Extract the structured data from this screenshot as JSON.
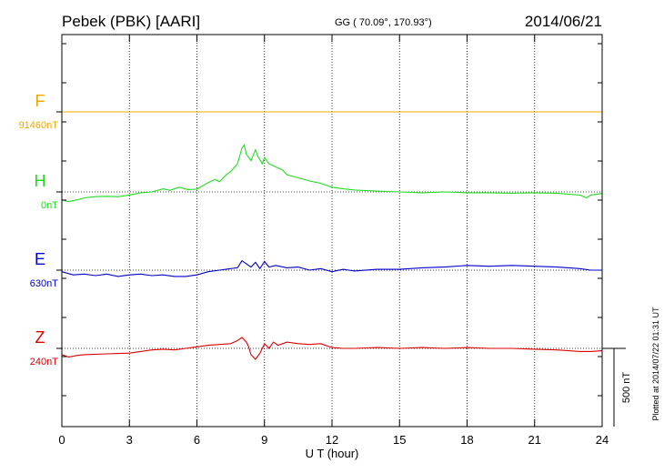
{
  "header": {
    "station": "Pebek (PBK)  [AARI]",
    "coords": "GG ( 70.09°, 170.93°)",
    "date": "2014/06/21"
  },
  "footer": {
    "plotted": "Plotted at 2014/07/22 01:31  UT",
    "scale_bar_label": "500 nT"
  },
  "chart_data": {
    "type": "line",
    "xlabel": "U T (hour)",
    "xlim": [
      0,
      24
    ],
    "xticks": [
      0,
      3,
      6,
      9,
      12,
      15,
      18,
      21,
      24
    ],
    "scale_bar_nT": 500,
    "series": [
      {
        "name": "F",
        "baseline_label": "91460nT",
        "color": "#f0a800",
        "points": [
          [
            0,
            0
          ],
          [
            24,
            0
          ]
        ]
      },
      {
        "name": "H",
        "baseline_label": "0nT",
        "color": "#22dd22",
        "points": [
          [
            0,
            -50
          ],
          [
            0.3,
            -62
          ],
          [
            0.7,
            -50
          ],
          [
            1,
            -38
          ],
          [
            1.5,
            -30
          ],
          [
            2,
            -28
          ],
          [
            2.5,
            -30
          ],
          [
            3,
            -20
          ],
          [
            3.5,
            -5
          ],
          [
            4,
            0
          ],
          [
            4.5,
            20
          ],
          [
            4.8,
            10
          ],
          [
            5.2,
            30
          ],
          [
            5.6,
            15
          ],
          [
            6,
            18
          ],
          [
            6.5,
            60
          ],
          [
            6.8,
            80
          ],
          [
            7,
            65
          ],
          [
            7.3,
            110
          ],
          [
            7.5,
            130
          ],
          [
            7.8,
            180
          ],
          [
            8,
            280
          ],
          [
            8.1,
            300
          ],
          [
            8.2,
            240
          ],
          [
            8.4,
            200
          ],
          [
            8.6,
            270
          ],
          [
            8.7,
            230
          ],
          [
            8.9,
            180
          ],
          [
            9,
            220
          ],
          [
            9.2,
            180
          ],
          [
            9.5,
            160
          ],
          [
            9.8,
            140
          ],
          [
            10,
            110
          ],
          [
            10.5,
            90
          ],
          [
            11,
            70
          ],
          [
            11.5,
            55
          ],
          [
            12,
            30
          ],
          [
            12.5,
            20
          ],
          [
            13,
            12
          ],
          [
            14,
            5
          ],
          [
            15,
            0
          ],
          [
            16,
            -5
          ],
          [
            17,
            0
          ],
          [
            18,
            -5
          ],
          [
            19,
            -5
          ],
          [
            20,
            -8
          ],
          [
            21,
            -5
          ],
          [
            22,
            -8
          ],
          [
            23,
            -20
          ],
          [
            23.3,
            -38
          ],
          [
            23.5,
            -20
          ],
          [
            24,
            -10
          ]
        ]
      },
      {
        "name": "E",
        "baseline_label": "630nT",
        "color": "#0000cc",
        "points": [
          [
            0,
            -10
          ],
          [
            0.5,
            -30
          ],
          [
            1,
            -25
          ],
          [
            1.5,
            -35
          ],
          [
            2,
            -25
          ],
          [
            2.5,
            -40
          ],
          [
            3,
            -30
          ],
          [
            3.5,
            -25
          ],
          [
            4,
            -35
          ],
          [
            4.5,
            -30
          ],
          [
            5,
            -40
          ],
          [
            5.5,
            -40
          ],
          [
            6,
            -30
          ],
          [
            6.5,
            -10
          ],
          [
            7,
            0
          ],
          [
            7.5,
            10
          ],
          [
            7.8,
            15
          ],
          [
            8,
            60
          ],
          [
            8.2,
            40
          ],
          [
            8.4,
            20
          ],
          [
            8.6,
            50
          ],
          [
            8.8,
            10
          ],
          [
            9,
            55
          ],
          [
            9.2,
            20
          ],
          [
            9.5,
            30
          ],
          [
            10,
            15
          ],
          [
            10.5,
            20
          ],
          [
            11,
            0
          ],
          [
            11.5,
            10
          ],
          [
            12,
            -10
          ],
          [
            12.5,
            5
          ],
          [
            13,
            -5
          ],
          [
            14,
            5
          ],
          [
            15,
            5
          ],
          [
            16,
            15
          ],
          [
            17,
            20
          ],
          [
            18,
            30
          ],
          [
            19,
            25
          ],
          [
            20,
            30
          ],
          [
            21,
            25
          ],
          [
            22,
            20
          ],
          [
            23,
            10
          ],
          [
            23.5,
            0
          ],
          [
            24,
            0
          ]
        ]
      },
      {
        "name": "Z",
        "baseline_label": "240nT",
        "color": "#dd0000",
        "points": [
          [
            0,
            -40
          ],
          [
            0.3,
            -55
          ],
          [
            0.7,
            -45
          ],
          [
            1,
            -40
          ],
          [
            2,
            -35
          ],
          [
            3,
            -30
          ],
          [
            3.5,
            -20
          ],
          [
            4,
            -10
          ],
          [
            4.5,
            -5
          ],
          [
            5,
            -10
          ],
          [
            5.5,
            0
          ],
          [
            6,
            10
          ],
          [
            6.5,
            20
          ],
          [
            7,
            25
          ],
          [
            7.5,
            30
          ],
          [
            7.8,
            50
          ],
          [
            8,
            70
          ],
          [
            8.2,
            40
          ],
          [
            8.3,
            10
          ],
          [
            8.4,
            -40
          ],
          [
            8.6,
            -70
          ],
          [
            8.8,
            -30
          ],
          [
            9,
            30
          ],
          [
            9.2,
            0
          ],
          [
            9.4,
            40
          ],
          [
            9.6,
            20
          ],
          [
            10,
            40
          ],
          [
            10.5,
            30
          ],
          [
            11,
            25
          ],
          [
            11.5,
            30
          ],
          [
            12,
            5
          ],
          [
            12.5,
            0
          ],
          [
            13,
            0
          ],
          [
            14,
            5
          ],
          [
            15,
            0
          ],
          [
            16,
            5
          ],
          [
            17,
            0
          ],
          [
            18,
            5
          ],
          [
            19,
            0
          ],
          [
            20,
            0
          ],
          [
            21,
            -5
          ],
          [
            22,
            -10
          ],
          [
            23,
            -20
          ],
          [
            23.5,
            -20
          ],
          [
            24,
            -15
          ]
        ]
      }
    ]
  }
}
